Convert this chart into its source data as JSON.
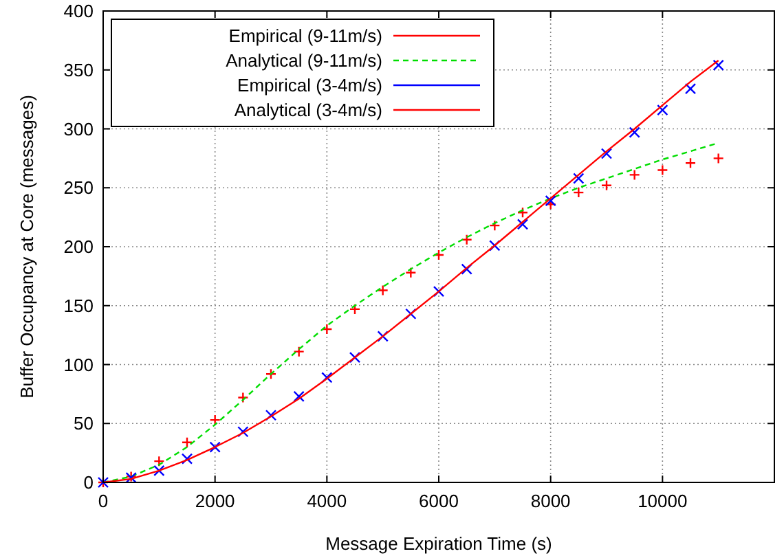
{
  "chart_data": {
    "type": "line",
    "xlabel": "Message Expiration Time (s)",
    "ylabel": "Buffer Occupancy at Core (messages)",
    "x": [
      0,
      500,
      1000,
      1500,
      2000,
      2500,
      3000,
      3500,
      4000,
      4500,
      5000,
      5500,
      6000,
      6500,
      7000,
      7500,
      8000,
      8500,
      9000,
      9500,
      10000,
      10500,
      11000
    ],
    "series": [
      {
        "name": "Empirical (9-11m/s)",
        "type": "scatter",
        "color": "#ff0000",
        "values": [
          0,
          5,
          18,
          34,
          53,
          72,
          92,
          111,
          130,
          147,
          163,
          178,
          193,
          206,
          218,
          229,
          236,
          246,
          252,
          261,
          265,
          271,
          275
        ]
      },
      {
        "name": "Analytical (9-11m/s)",
        "line_style": "dashed",
        "color": "#00dd00",
        "values": [
          0,
          5,
          15,
          30,
          49,
          70,
          92,
          113,
          133,
          150,
          166,
          181,
          195,
          208,
          220,
          231,
          241,
          250,
          258,
          266,
          274,
          281,
          288
        ]
      },
      {
        "name": "Empirical (3-4m/s)",
        "type": "scatter",
        "marker": "cross",
        "color": "#0000ff",
        "values": [
          0,
          4,
          10,
          20,
          30,
          43,
          57,
          73,
          89,
          106,
          124,
          143,
          162,
          181,
          201,
          219,
          239,
          258,
          279,
          297,
          316,
          334,
          354
        ]
      },
      {
        "name": "Analytical (3-4m/s)",
        "line_style": "solid",
        "color": "#ff0000",
        "values": [
          0,
          3,
          10,
          19,
          30,
          42,
          56,
          71,
          88,
          106,
          124,
          143,
          162,
          182,
          201,
          221,
          241,
          261,
          281,
          300,
          320,
          340,
          358
        ]
      }
    ],
    "xlim": [
      0,
      12000
    ],
    "xticks": [
      0,
      2000,
      4000,
      6000,
      8000,
      10000
    ],
    "ylim": [
      0,
      400
    ],
    "yticks": [
      0,
      50,
      100,
      150,
      200,
      250,
      300,
      350,
      400
    ],
    "grid": true,
    "legend": "top left"
  }
}
